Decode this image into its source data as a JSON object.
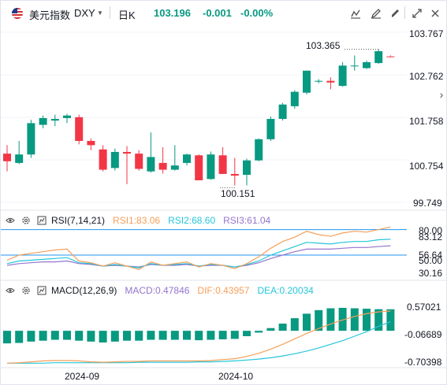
{
  "header": {
    "symbol_name": "美元指数",
    "symbol_code": "DXY",
    "interval": "日K",
    "price": "103.196",
    "change": "-0.001",
    "change_pct": "-0.00%",
    "toolbar_icons": [
      "bar-style-icon",
      "indicator-edit-icon",
      "drawing-icon",
      "settings-icon",
      "fullscreen-icon",
      "close-icon"
    ]
  },
  "colors": {
    "up": "#089981",
    "down": "#f23645",
    "rsi1": "#f5a05a",
    "rsi2": "#26c6da",
    "rsi3": "#9575cd",
    "dif": "#f5a05a",
    "dea": "#26c6da",
    "hline": "#2196f3"
  },
  "price_axis": {
    "ticks": [
      "103.767",
      "102.762",
      "101.758",
      "100.754",
      "99.749"
    ]
  },
  "annotations": {
    "high": "103.365",
    "low": "100.151"
  },
  "rsi": {
    "label": "RSI(7,14,21)",
    "rsi1": "RSI1:83.06",
    "rsi2": "RSI2:68.60",
    "rsi3": "RSI3:61.04",
    "ticks": [
      "80.00",
      "83.12",
      "56.64",
      "50.00",
      "30.16"
    ]
  },
  "macd": {
    "label": "MACD(12,26,9)",
    "macd": "MACD:0.47846",
    "dif": "DIF:0.43957",
    "dea": "DEA:0.20034",
    "ticks": [
      "0.57021",
      "-0.06689",
      "-0.70398"
    ]
  },
  "time_axis": {
    "labels": [
      "2024-09",
      "2024-10"
    ]
  },
  "chart_data": {
    "type": "candlestick",
    "price_ylim": [
      99.749,
      103.767
    ],
    "candles": [
      {
        "o": 100.9,
        "h": 101.1,
        "l": 100.48,
        "c": 100.72
      },
      {
        "o": 100.68,
        "h": 101.2,
        "l": 100.65,
        "c": 100.88
      },
      {
        "o": 100.88,
        "h": 101.7,
        "l": 100.8,
        "c": 101.62
      },
      {
        "o": 101.58,
        "h": 101.8,
        "l": 101.5,
        "c": 101.74
      },
      {
        "o": 101.68,
        "h": 101.82,
        "l": 101.55,
        "c": 101.72
      },
      {
        "o": 101.74,
        "h": 101.84,
        "l": 101.62,
        "c": 101.8
      },
      {
        "o": 101.76,
        "h": 101.82,
        "l": 101.12,
        "c": 101.2
      },
      {
        "o": 101.2,
        "h": 101.26,
        "l": 100.98,
        "c": 101.1
      },
      {
        "o": 101.0,
        "h": 101.1,
        "l": 100.48,
        "c": 100.52
      },
      {
        "o": 100.56,
        "h": 101.02,
        "l": 100.5,
        "c": 100.94
      },
      {
        "o": 100.94,
        "h": 101.08,
        "l": 100.18,
        "c": 100.9
      },
      {
        "o": 100.9,
        "h": 100.98,
        "l": 100.5,
        "c": 100.54
      },
      {
        "o": 100.48,
        "h": 101.4,
        "l": 100.45,
        "c": 100.82
      },
      {
        "o": 100.68,
        "h": 101.05,
        "l": 100.43,
        "c": 100.52
      },
      {
        "o": 100.52,
        "h": 101.1,
        "l": 100.5,
        "c": 100.62
      },
      {
        "o": 100.68,
        "h": 100.9,
        "l": 100.62,
        "c": 100.88
      },
      {
        "o": 100.86,
        "h": 100.88,
        "l": 100.27,
        "c": 100.27
      },
      {
        "o": 100.3,
        "h": 100.95,
        "l": 100.28,
        "c": 100.88
      },
      {
        "o": 100.86,
        "h": 101.05,
        "l": 100.42,
        "c": 100.42
      },
      {
        "o": 100.42,
        "h": 100.8,
        "l": 100.15,
        "c": 100.38
      },
      {
        "o": 100.4,
        "h": 100.78,
        "l": 100.15,
        "c": 100.74
      },
      {
        "o": 100.74,
        "h": 101.26,
        "l": 100.72,
        "c": 101.24
      },
      {
        "o": 101.24,
        "h": 101.78,
        "l": 101.2,
        "c": 101.72
      },
      {
        "o": 101.72,
        "h": 102.1,
        "l": 101.68,
        "c": 102.06
      },
      {
        "o": 102.02,
        "h": 102.4,
        "l": 101.96,
        "c": 102.36
      },
      {
        "o": 102.34,
        "h": 102.86,
        "l": 102.3,
        "c": 102.86
      },
      {
        "o": 102.6,
        "h": 102.66,
        "l": 102.56,
        "c": 102.62
      },
      {
        "o": 102.62,
        "h": 102.7,
        "l": 102.42,
        "c": 102.58
      },
      {
        "o": 102.5,
        "h": 103.06,
        "l": 102.48,
        "c": 102.98
      },
      {
        "o": 102.98,
        "h": 103.22,
        "l": 102.86,
        "c": 102.98
      },
      {
        "o": 102.92,
        "h": 103.1,
        "l": 102.9,
        "c": 103.06
      },
      {
        "o": 103.04,
        "h": 103.365,
        "l": 103.02,
        "c": 103.32
      },
      {
        "o": 103.197,
        "h": 103.22,
        "l": 103.18,
        "c": 103.196
      }
    ],
    "rsi_ylim": [
      25,
      87
    ],
    "rsi1": [
      44,
      50,
      52,
      54,
      56,
      57,
      43,
      41,
      37,
      41,
      37,
      33,
      42,
      38,
      40,
      42,
      36,
      40,
      38,
      34,
      40,
      48,
      58,
      66,
      71,
      78,
      74,
      72,
      76,
      78,
      77,
      80,
      83.06
    ],
    "rsi2": [
      40,
      43,
      44,
      45,
      46,
      47,
      41,
      40,
      37,
      39,
      37,
      35,
      40,
      38,
      39,
      40,
      37,
      39,
      38,
      36,
      39,
      43,
      50,
      55,
      60,
      65,
      64,
      63,
      65,
      66,
      66,
      68,
      68.6
    ],
    "rsi3": [
      38,
      40,
      41,
      42,
      42,
      43,
      40,
      39,
      37,
      38,
      37,
      36,
      39,
      38,
      38,
      39,
      37,
      38,
      38,
      36,
      38,
      41,
      46,
      50,
      54,
      57,
      57,
      57,
      58,
      59,
      59,
      60,
      61.04
    ],
    "rsi_hlines": [
      80,
      50
    ],
    "macd_ylim": [
      -0.75,
      0.72
    ],
    "macd_hist": [
      -0.28,
      -0.27,
      -0.24,
      -0.22,
      -0.2,
      -0.2,
      -0.22,
      -0.24,
      -0.26,
      -0.24,
      -0.22,
      -0.22,
      -0.2,
      -0.2,
      -0.2,
      -0.2,
      -0.21,
      -0.2,
      -0.19,
      -0.18,
      -0.12,
      -0.04,
      0.06,
      0.16,
      0.28,
      0.38,
      0.46,
      0.5,
      0.51,
      0.5,
      0.49,
      0.48,
      0.47846
    ],
    "dif": [
      -0.72,
      -0.71,
      -0.69,
      -0.67,
      -0.66,
      -0.66,
      -0.67,
      -0.69,
      -0.7,
      -0.69,
      -0.68,
      -0.68,
      -0.67,
      -0.67,
      -0.67,
      -0.67,
      -0.67,
      -0.66,
      -0.64,
      -0.62,
      -0.57,
      -0.5,
      -0.41,
      -0.3,
      -0.18,
      -0.06,
      0.05,
      0.15,
      0.24,
      0.32,
      0.38,
      0.42,
      0.43957
    ],
    "dea": [
      -0.72,
      -0.72,
      -0.72,
      -0.72,
      -0.71,
      -0.71,
      -0.71,
      -0.71,
      -0.71,
      -0.71,
      -0.71,
      -0.7,
      -0.7,
      -0.7,
      -0.7,
      -0.7,
      -0.69,
      -0.69,
      -0.68,
      -0.67,
      -0.65,
      -0.63,
      -0.6,
      -0.56,
      -0.51,
      -0.45,
      -0.38,
      -0.3,
      -0.22,
      -0.12,
      -0.02,
      0.1,
      0.20034
    ]
  }
}
